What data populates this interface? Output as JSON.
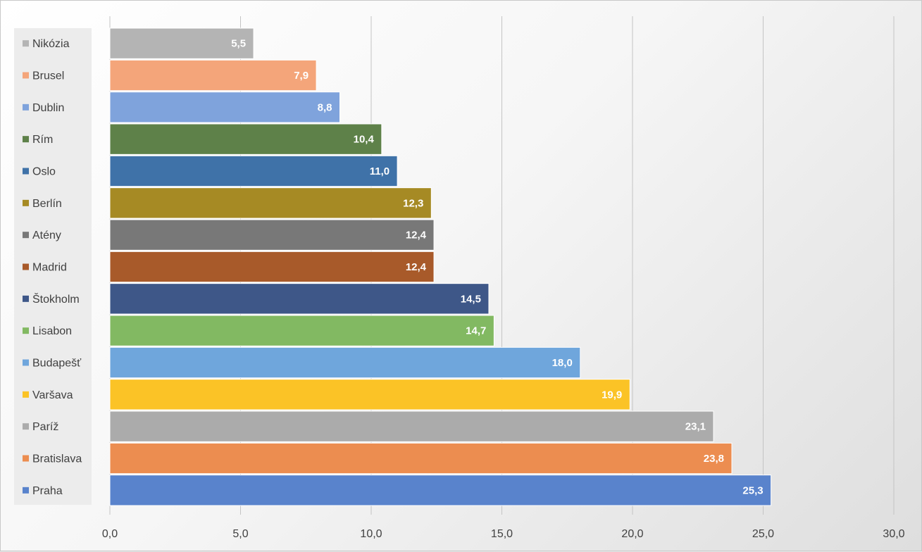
{
  "chart_data": {
    "type": "bar",
    "orientation": "horizontal",
    "categories": [
      "Nikózia",
      "Brusel",
      "Dublin",
      "Rím",
      "Oslo",
      "Berlín",
      "Atény",
      "Madrid",
      "Štokholm",
      "Lisabon",
      "Budapešť",
      "Varšava",
      "Paríž",
      "Bratislava",
      "Praha"
    ],
    "values": [
      5.5,
      7.9,
      8.8,
      10.4,
      11.0,
      12.3,
      12.4,
      12.4,
      14.5,
      14.7,
      18.0,
      19.9,
      23.1,
      23.8,
      25.3
    ],
    "value_labels": [
      "5,5",
      "7,9",
      "8,8",
      "10,4",
      "11,0",
      "12,3",
      "12,4",
      "12,4",
      "14,5",
      "14,7",
      "18,0",
      "19,9",
      "23,1",
      "23,8",
      "25,3"
    ],
    "colors": [
      "#b4b4b4",
      "#f4a57a",
      "#7fa3dc",
      "#5e8149",
      "#3f72a8",
      "#a68a24",
      "#787878",
      "#a85a2a",
      "#3e5788",
      "#82b962",
      "#6fa6dc",
      "#fbc326",
      "#ababab",
      "#ec8d50",
      "#5983cc"
    ],
    "xlim": [
      0,
      30
    ],
    "x_ticks": [
      0,
      5,
      10,
      15,
      20,
      25,
      30
    ],
    "x_tick_labels": [
      "0,0",
      "5,0",
      "10,0",
      "15,0",
      "20,0",
      "25,0",
      "30,0"
    ],
    "grid": true,
    "legend": {
      "position": "left"
    },
    "title": "",
    "xlabel": "",
    "ylabel": ""
  }
}
